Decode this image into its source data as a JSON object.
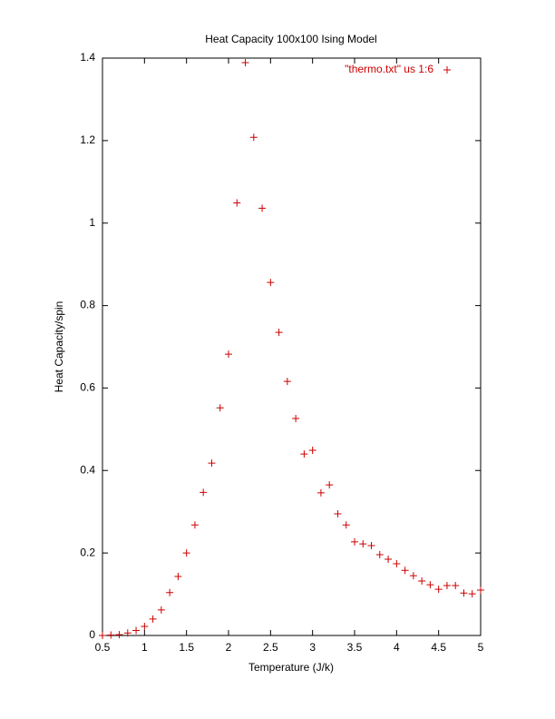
{
  "chart_data": {
    "type": "scatter",
    "title": "Heat Capacity 100x100 Ising Model",
    "x_label": "Temperature (J/k)",
    "y_label": "Heat Capacity/spin",
    "xlim": [
      0.5,
      5
    ],
    "ylim": [
      0,
      1.4
    ],
    "xticks": [
      0.5,
      1,
      1.5,
      2,
      2.5,
      3,
      3.5,
      4,
      4.5,
      5
    ],
    "yticks": [
      0,
      0.2,
      0.4,
      0.6,
      0.8,
      1,
      1.2,
      1.4
    ],
    "legend": "top-right",
    "series": [
      {
        "name": "\"thermo.txt\" us 1:6",
        "color": "#cc0000",
        "x": [
          0.5,
          0.6,
          0.7,
          0.8,
          0.9,
          1.0,
          1.1,
          1.2,
          1.3,
          1.4,
          1.5,
          1.6,
          1.7,
          1.8,
          1.9,
          2.0,
          2.1,
          2.2,
          2.3,
          2.4,
          2.5,
          2.6,
          2.7,
          2.8,
          2.9,
          3.0,
          3.1,
          3.2,
          3.3,
          3.4,
          3.5,
          3.6,
          3.7,
          3.8,
          3.9,
          4.0,
          4.1,
          4.2,
          4.3,
          4.4,
          4.5,
          4.6,
          4.7,
          4.8,
          4.9,
          5.0
        ],
        "values": [
          0.0,
          0.001,
          0.002,
          0.006,
          0.012,
          0.022,
          0.04,
          0.062,
          0.104,
          0.143,
          0.2,
          0.268,
          0.347,
          0.418,
          0.552,
          0.682,
          1.049,
          1.389,
          1.208,
          1.036,
          0.856,
          0.735,
          0.616,
          0.526,
          0.44,
          0.449,
          0.346,
          0.365,
          0.295,
          0.268,
          0.227,
          0.222,
          0.218,
          0.196,
          0.185,
          0.174,
          0.158,
          0.145,
          0.132,
          0.123,
          0.112,
          0.121,
          0.121,
          0.103,
          0.101,
          0.11
        ]
      }
    ]
  }
}
